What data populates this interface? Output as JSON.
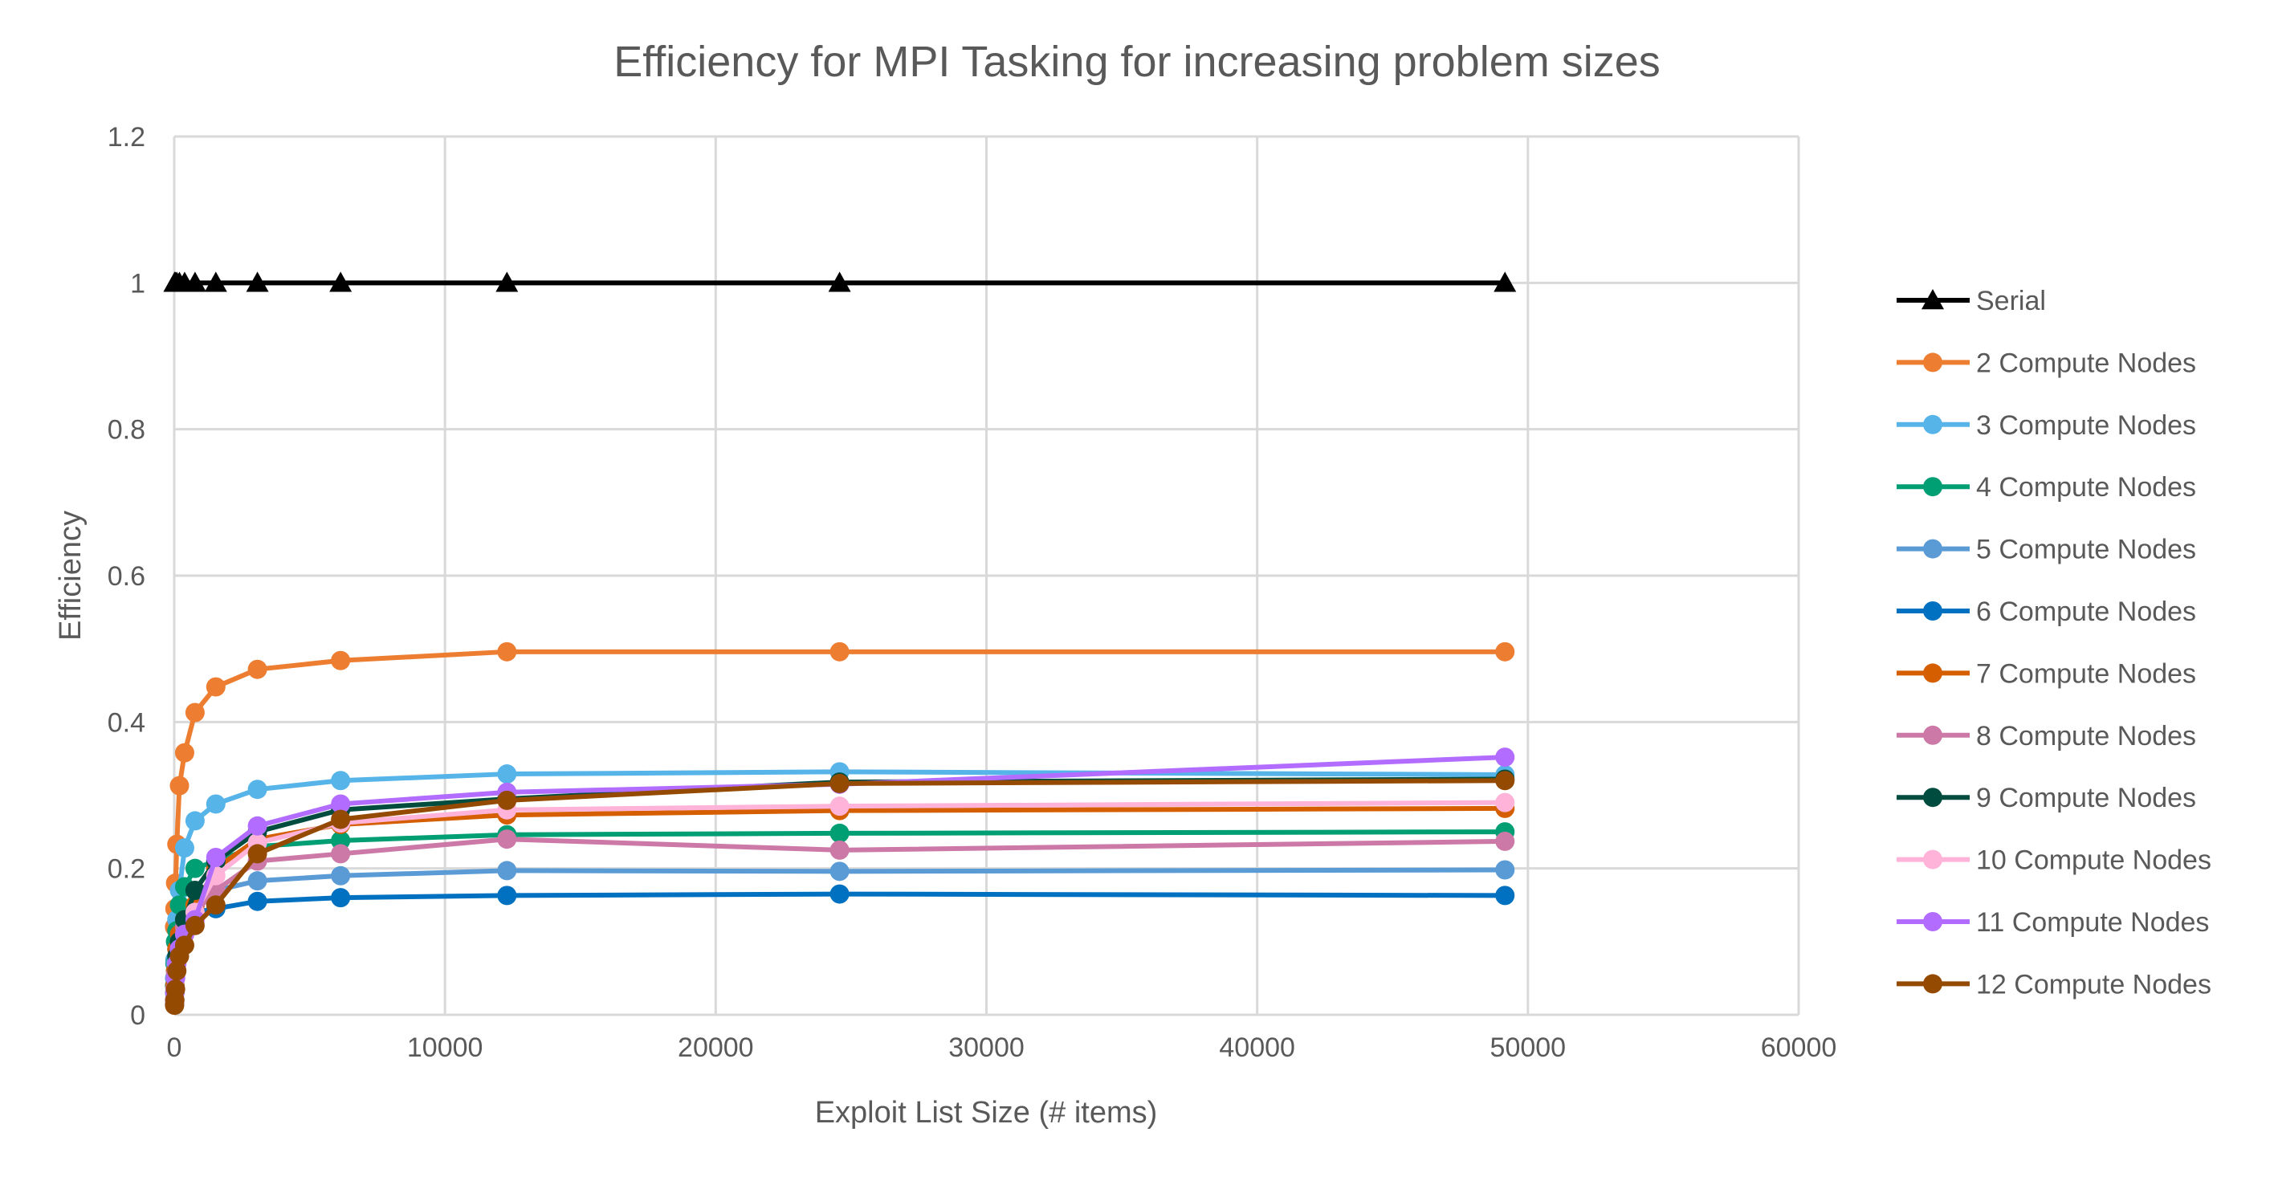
{
  "chart_data": {
    "type": "line",
    "title": "Efficiency for MPI Tasking for increasing problem sizes",
    "xlabel": "Exploit List Size (# items)",
    "ylabel": "Efficiency",
    "xlim": [
      0,
      60000
    ],
    "ylim": [
      0,
      1.2
    ],
    "xticks": [
      0,
      10000,
      20000,
      30000,
      40000,
      50000,
      60000
    ],
    "yticks": [
      0,
      0.2,
      0.4,
      0.6,
      0.8,
      1,
      1.2
    ],
    "grid": true,
    "legend": "right",
    "x": [
      12,
      24,
      48,
      96,
      192,
      384,
      768,
      1536,
      3072,
      6144,
      12288,
      24576,
      49152
    ],
    "series": [
      {
        "name": "Serial",
        "color": "#000000",
        "marker": "triangle",
        "values": [
          1,
          1,
          1,
          1,
          1,
          1,
          1,
          1,
          1,
          1,
          1,
          1,
          1
        ]
      },
      {
        "name": "2 Compute Nodes",
        "color": "#ED7D31",
        "marker": "circle",
        "values": [
          0.12,
          0.145,
          0.18,
          0.233,
          0.313,
          0.358,
          0.413,
          0.448,
          0.472,
          0.484,
          0.496,
          0.496,
          0.496
        ]
      },
      {
        "name": "3 Compute Nodes",
        "color": "#56B4E9",
        "marker": "circle",
        "values": [
          0.05,
          0.075,
          0.1,
          0.13,
          0.17,
          0.228,
          0.265,
          0.288,
          0.308,
          0.32,
          0.329,
          0.332,
          0.328
        ]
      },
      {
        "name": "4 Compute Nodes",
        "color": "#009E73",
        "marker": "circle",
        "values": [
          0.04,
          0.07,
          0.1,
          0.115,
          0.15,
          0.175,
          0.2,
          0.21,
          0.23,
          0.238,
          0.246,
          0.248,
          0.25
        ]
      },
      {
        "name": "5 Compute Nodes",
        "color": "#5B9BD5",
        "marker": "circle",
        "values": [
          0.03,
          0.05,
          0.07,
          0.09,
          0.11,
          0.13,
          0.15,
          0.17,
          0.183,
          0.19,
          0.197,
          0.196,
          0.198
        ]
      },
      {
        "name": "6 Compute Nodes",
        "color": "#0070C0",
        "marker": "circle",
        "values": [
          0.02,
          0.04,
          0.06,
          0.08,
          0.1,
          0.12,
          0.14,
          0.145,
          0.155,
          0.16,
          0.163,
          0.165,
          0.163
        ]
      },
      {
        "name": "7 Compute Nodes",
        "color": "#D55E00",
        "marker": "circle",
        "values": [
          0.02,
          0.04,
          0.06,
          0.09,
          0.11,
          0.13,
          0.15,
          0.2,
          0.24,
          0.26,
          0.273,
          0.279,
          0.282
        ]
      },
      {
        "name": "8 Compute Nodes",
        "color": "#CC79A7",
        "marker": "circle",
        "values": [
          0.02,
          0.035,
          0.055,
          0.08,
          0.1,
          0.12,
          0.14,
          0.17,
          0.21,
          0.22,
          0.24,
          0.225,
          0.237
        ]
      },
      {
        "name": "9 Compute Nodes",
        "color": "#004D40",
        "marker": "circle",
        "values": [
          0.015,
          0.03,
          0.05,
          0.08,
          0.1,
          0.13,
          0.17,
          0.21,
          0.25,
          0.28,
          0.295,
          0.318,
          0.322
        ]
      },
      {
        "name": "10 Compute Nodes",
        "color": "#FFB3D9",
        "marker": "circle",
        "values": [
          0.015,
          0.03,
          0.05,
          0.07,
          0.09,
          0.11,
          0.14,
          0.19,
          0.235,
          0.262,
          0.28,
          0.285,
          0.29
        ]
      },
      {
        "name": "11 Compute Nodes",
        "color": "#B26CFF",
        "marker": "circle",
        "values": [
          0.015,
          0.03,
          0.05,
          0.07,
          0.09,
          0.11,
          0.13,
          0.215,
          0.258,
          0.288,
          0.304,
          0.315,
          0.352
        ]
      },
      {
        "name": "12 Compute Nodes",
        "color": "#944A00",
        "marker": "circle",
        "values": [
          0.013,
          0.02,
          0.035,
          0.06,
          0.08,
          0.095,
          0.122,
          0.15,
          0.22,
          0.267,
          0.293,
          0.316,
          0.32
        ]
      }
    ]
  }
}
